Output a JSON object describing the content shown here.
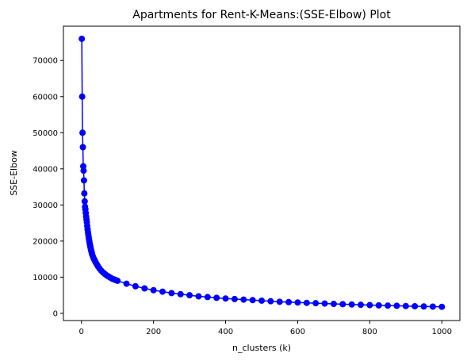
{
  "chart_data": {
    "type": "line",
    "title": "Apartments for Rent-K-Means:(SSE-Elbow) Plot",
    "xlabel": "n_clusters (k)",
    "ylabel": "SSE-Elbow",
    "xlim": [
      -50,
      1050
    ],
    "ylim": [
      -2000,
      79500
    ],
    "xticks": [
      0,
      200,
      400,
      600,
      800,
      1000
    ],
    "yticks": [
      0,
      10000,
      20000,
      30000,
      40000,
      50000,
      60000,
      70000
    ],
    "grid": false,
    "series": [
      {
        "color": "#0000ff",
        "marker": "circle",
        "x": [
          1,
          2,
          3,
          4,
          5,
          6,
          7,
          8,
          9,
          10,
          11,
          12,
          13,
          14,
          15,
          16,
          17,
          18,
          19,
          20,
          21,
          22,
          23,
          24,
          25,
          26,
          27,
          28,
          29,
          30,
          32,
          34,
          36,
          38,
          40,
          43,
          46,
          50,
          55,
          60,
          65,
          70,
          75,
          80,
          85,
          90,
          95,
          100,
          125,
          150,
          175,
          200,
          225,
          250,
          275,
          300,
          325,
          350,
          375,
          400,
          425,
          450,
          475,
          500,
          525,
          550,
          575,
          600,
          625,
          650,
          675,
          700,
          725,
          750,
          775,
          800,
          825,
          850,
          875,
          900,
          925,
          950,
          975,
          1000
        ],
        "y": [
          76000,
          60000,
          50000,
          46000,
          40700,
          39500,
          36800,
          33200,
          31000,
          29500,
          28800,
          27800,
          26800,
          26000,
          25200,
          24200,
          23300,
          22500,
          21800,
          21100,
          20500,
          19900,
          19300,
          18800,
          18300,
          17800,
          17400,
          17000,
          16600,
          16200,
          15700,
          15200,
          14800,
          14400,
          14000,
          13500,
          13000,
          12400,
          11800,
          11300,
          10900,
          10500,
          10200,
          9900,
          9600,
          9400,
          9200,
          9000,
          8200,
          7500,
          6900,
          6400,
          6000,
          5600,
          5300,
          5000,
          4700,
          4500,
          4300,
          4100,
          3950,
          3800,
          3650,
          3500,
          3350,
          3200,
          3100,
          3000,
          2900,
          2800,
          2700,
          2600,
          2520,
          2440,
          2360,
          2280,
          2200,
          2140,
          2080,
          2020,
          1960,
          1900,
          1850,
          1800
        ]
      }
    ]
  }
}
